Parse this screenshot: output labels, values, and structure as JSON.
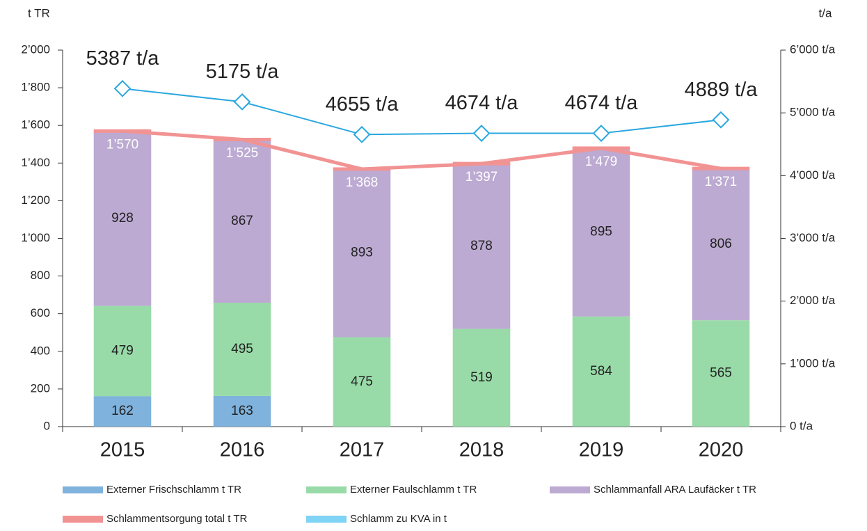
{
  "chart_data": {
    "type": "bar",
    "y_label": "t TR",
    "y2_label": "t/a",
    "categories": [
      "2015",
      "2016",
      "2017",
      "2018",
      "2019",
      "2020"
    ],
    "ylim": [
      0,
      2000
    ],
    "yticks": [
      0,
      200,
      400,
      600,
      800,
      {
        "value": 1000,
        "label": "1’000"
      },
      {
        "value": 1200,
        "label": "1’200"
      },
      {
        "value": 1400,
        "label": "1’400"
      },
      {
        "value": 1600,
        "label": "1’600"
      },
      {
        "value": 1800,
        "label": "1’800"
      },
      {
        "value": 2000,
        "label": "2’000"
      }
    ],
    "y2lim": [
      0,
      6000
    ],
    "y2ticks": [
      {
        "value": 0,
        "label": "0 t/a"
      },
      {
        "value": 1000,
        "label": "1’000 t/a"
      },
      {
        "value": 2000,
        "label": "2’000 t/a"
      },
      {
        "value": 3000,
        "label": "3’000 t/a"
      },
      {
        "value": 4000,
        "label": "4’000 t/a"
      },
      {
        "value": 5000,
        "label": "5’000 t/a"
      },
      {
        "value": 6000,
        "label": "6’000 t/a"
      }
    ],
    "series": [
      {
        "name": "Externer Frischschlamm t TR",
        "color": "#7fb2dc",
        "kind": "stack",
        "values": [
          162,
          163,
          0,
          0,
          1,
          0
        ]
      },
      {
        "name": "Externer Faulschlamm t TR",
        "color": "#99dba8",
        "kind": "stack",
        "values": [
          479,
          495,
          475,
          519,
          584,
          565
        ]
      },
      {
        "name": "Schlammanfall ARA Laufäcker t TR",
        "color": "#bcaad2",
        "kind": "stack",
        "values": [
          928,
          867,
          893,
          878,
          895,
          806
        ]
      },
      {
        "name": "Schlammentsorgung total t TR",
        "color": "#f29393",
        "kind": "line",
        "values": [
          1570,
          1525,
          1368,
          1397,
          1479,
          1371
        ],
        "value_labels": [
          "1’570",
          "1’525",
          "1’368",
          "1’397",
          "1’479",
          "1’371"
        ]
      },
      {
        "name": "Schlamm zu KVA in t",
        "color": "#7fd3f5",
        "line_color": "#2aa7df",
        "kind": "line",
        "axis": "y2",
        "values": [
          5387,
          5175,
          4655,
          4674,
          4674,
          4889
        ],
        "value_labels": [
          "5387 t/a",
          "5175 t/a",
          "4655 t/a",
          "4674 t/a",
          "4674 t/a",
          "4889 t/a"
        ]
      }
    ]
  }
}
